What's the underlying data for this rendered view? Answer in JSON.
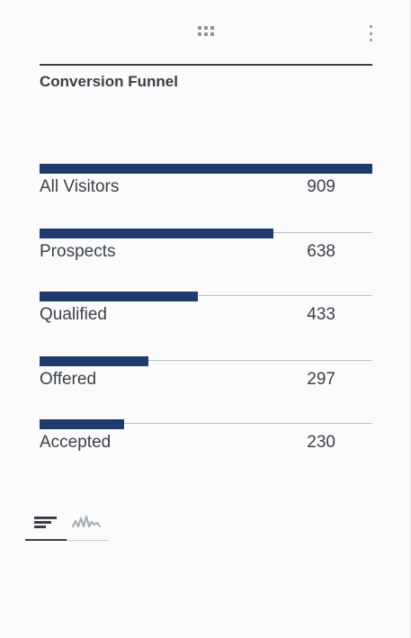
{
  "widget": {
    "title": "Conversion Funnel",
    "icons": {
      "drag": "drag-handle-grid-icon",
      "menu": "more-vertical-icon"
    }
  },
  "funnel": {
    "max_value": 909,
    "stages": [
      {
        "label": "All Visitors",
        "value": "909",
        "count": 909
      },
      {
        "label": "Prospects",
        "value": "638",
        "count": 638
      },
      {
        "label": "Qualified",
        "value": "433",
        "count": 433
      },
      {
        "label": "Offered",
        "value": "297",
        "count": 297
      },
      {
        "label": "Accepted",
        "value": "230",
        "count": 230
      }
    ]
  },
  "view_tabs": {
    "active": "bar-chart",
    "items": [
      {
        "id": "bar-chart",
        "icon": "bar-chart-icon"
      },
      {
        "id": "sparkline",
        "icon": "sparkline-icon"
      }
    ]
  },
  "colors": {
    "bar": "#1f3a6e",
    "track": "#b8c1cc",
    "text": "#3c4047",
    "background": "#fbfbfc"
  }
}
